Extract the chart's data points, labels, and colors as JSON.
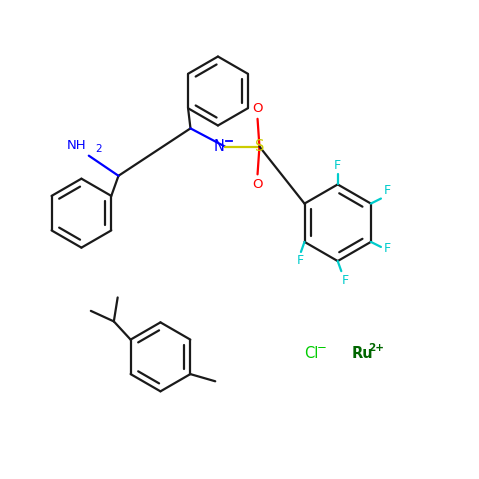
{
  "bg_color": "#ffffff",
  "bond_color": "#1a1a1a",
  "N_color": "#0000ff",
  "S_color": "#cccc00",
  "O_color": "#ff0000",
  "F_color": "#00cccc",
  "Cl_color": "#00cc00",
  "Ru_color": "#006600",
  "bond_lw": 1.6,
  "dbo": 0.06,
  "font_size": 9.5,
  "fig_size": [
    4.79,
    4.79
  ],
  "dpi": 100,
  "xlim": [
    0,
    10
  ],
  "ylim": [
    0,
    10
  ]
}
